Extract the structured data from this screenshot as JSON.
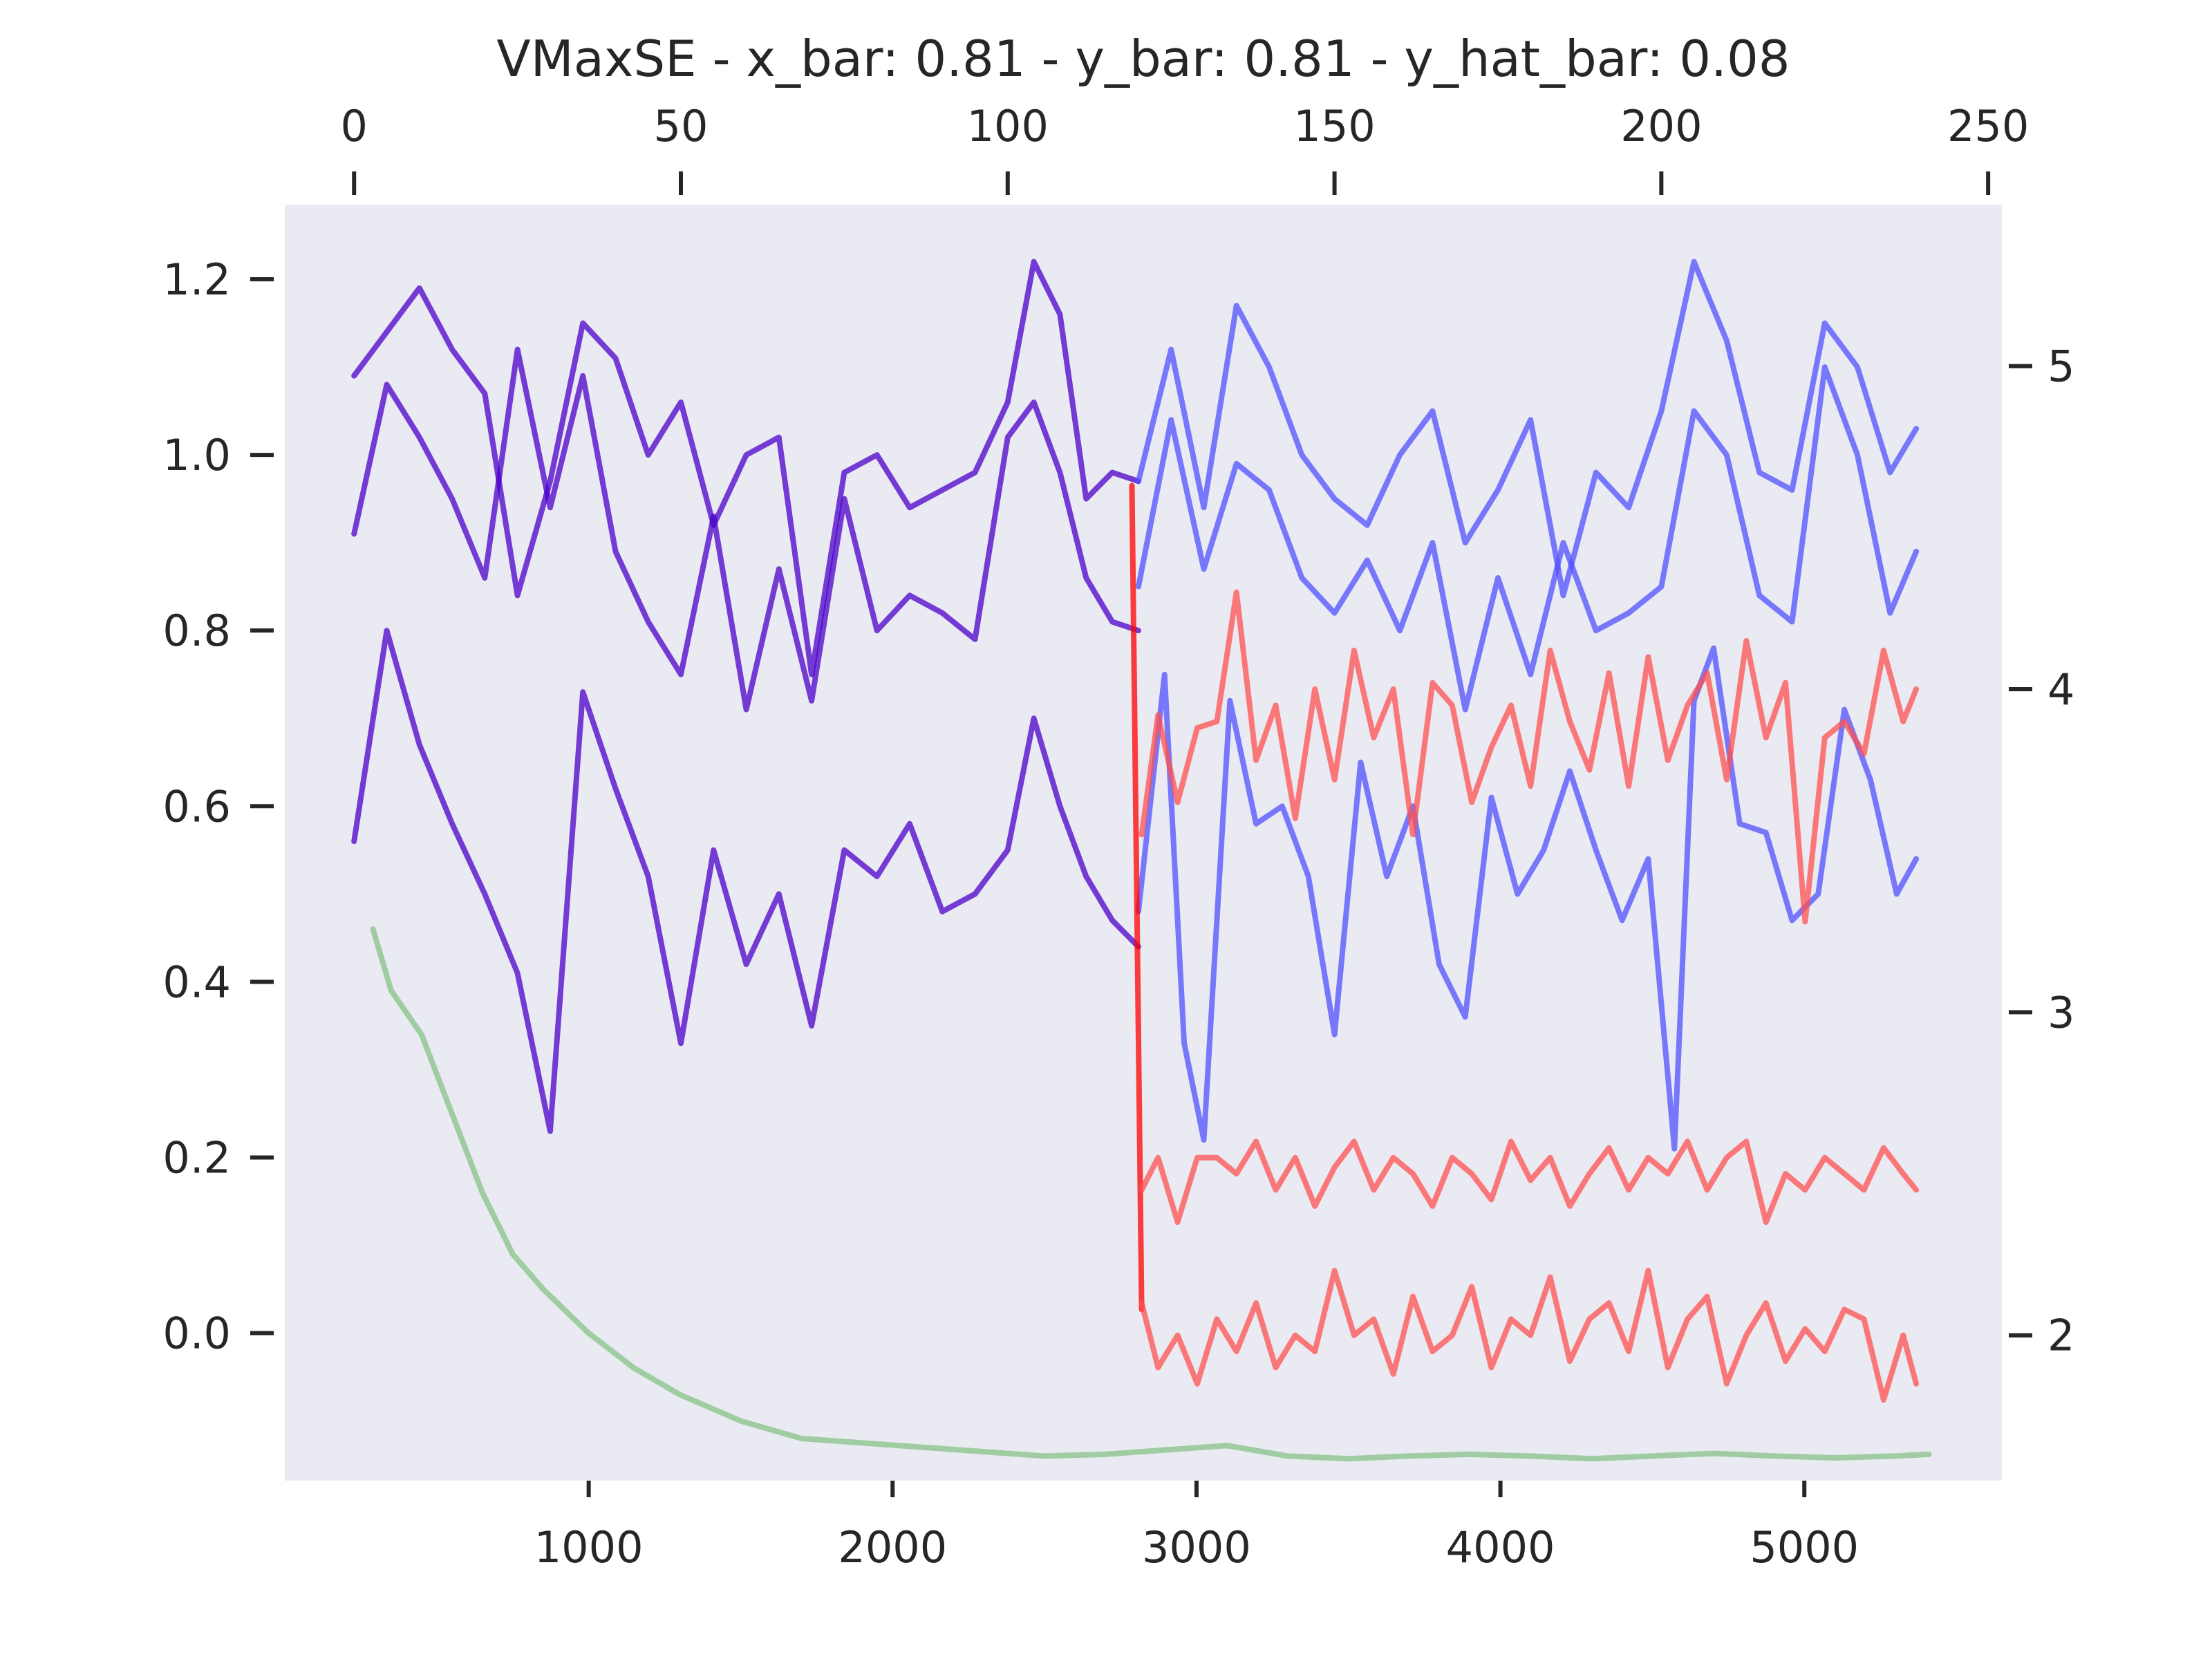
{
  "chart_data": {
    "type": "line",
    "title": "VMaxSE - x_bar: 0.81 - y_bar: 0.81 - y_hat_bar: 0.08",
    "grid": false,
    "background": "#eaeaf2",
    "axes": {
      "x_bottom": {
        "range": [
          0,
          5650
        ],
        "ticks": [
          1000,
          2000,
          3000,
          4000,
          5000
        ]
      },
      "y_left": {
        "range": [
          -0.168,
          1.285
        ],
        "ticks": [
          0.0,
          0.2,
          0.4,
          0.6,
          0.8,
          1.0,
          1.2
        ],
        "tick_labels": [
          "0.0",
          "0.2",
          "0.4",
          "0.6",
          "0.8",
          "1.0",
          "1.2"
        ]
      },
      "x_top": {
        "range": [
          -10.6,
          252.1
        ],
        "ticks": [
          0,
          50,
          100,
          150,
          200,
          250
        ]
      },
      "y_right": {
        "range": [
          1.55,
          5.5
        ],
        "ticks": [
          2,
          3,
          4,
          5
        ]
      }
    },
    "series": [
      {
        "color": "#4b00c8",
        "opacity": 0.75,
        "axes": "top-left",
        "x": [
          0,
          5,
          10,
          15,
          20,
          25,
          30,
          35,
          40,
          45,
          50,
          55,
          60,
          65,
          70,
          75,
          80,
          85,
          90,
          95,
          100,
          104,
          108,
          112,
          116,
          120
        ],
        "y": [
          1.09,
          1.14,
          1.19,
          1.12,
          1.07,
          0.84,
          0.97,
          1.15,
          1.11,
          1.0,
          1.06,
          0.92,
          1.0,
          1.02,
          0.75,
          0.98,
          1.0,
          0.94,
          0.96,
          0.98,
          1.06,
          1.22,
          1.16,
          0.95,
          0.98,
          0.97
        ]
      },
      {
        "color": "#4b00c8",
        "opacity": 0.75,
        "axes": "top-left",
        "x": [
          0,
          5,
          10,
          15,
          20,
          25,
          30,
          35,
          40,
          45,
          50,
          55,
          60,
          65,
          70,
          75,
          80,
          85,
          90,
          95,
          100,
          104,
          108,
          112,
          116,
          120
        ],
        "y": [
          0.91,
          1.08,
          1.02,
          0.95,
          0.86,
          1.12,
          0.94,
          1.09,
          0.89,
          0.81,
          0.75,
          0.93,
          0.71,
          0.87,
          0.72,
          0.95,
          0.8,
          0.84,
          0.82,
          0.79,
          1.02,
          1.06,
          0.98,
          0.86,
          0.81,
          0.8
        ]
      },
      {
        "color": "#4b00c8",
        "opacity": 0.75,
        "axes": "top-left",
        "x": [
          0,
          5,
          10,
          15,
          20,
          25,
          30,
          35,
          40,
          45,
          50,
          55,
          60,
          65,
          70,
          75,
          80,
          85,
          90,
          95,
          100,
          104,
          108,
          112,
          116,
          120
        ],
        "y": [
          0.56,
          0.8,
          0.67,
          0.58,
          0.5,
          0.41,
          0.23,
          0.73,
          0.62,
          0.52,
          0.33,
          0.55,
          0.42,
          0.5,
          0.35,
          0.55,
          0.52,
          0.58,
          0.48,
          0.5,
          0.55,
          0.7,
          0.6,
          0.52,
          0.47,
          0.44
        ]
      },
      {
        "color": "#5050ff",
        "opacity": 0.75,
        "axes": "top-left",
        "x": [
          120,
          125,
          130,
          135,
          140,
          145,
          150,
          155,
          160,
          165,
          170,
          175,
          180,
          185,
          190,
          195,
          200,
          205,
          210,
          215,
          220,
          225,
          230,
          235,
          239
        ],
        "y": [
          0.97,
          1.12,
          0.94,
          1.17,
          1.1,
          1.0,
          0.95,
          0.92,
          1.0,
          1.05,
          0.9,
          0.96,
          1.04,
          0.84,
          0.98,
          0.94,
          1.05,
          1.22,
          1.13,
          0.98,
          0.96,
          1.15,
          1.1,
          0.98,
          1.03
        ]
      },
      {
        "color": "#5050ff",
        "opacity": 0.75,
        "axes": "top-left",
        "x": [
          120,
          125,
          130,
          135,
          140,
          145,
          150,
          155,
          160,
          165,
          170,
          175,
          180,
          185,
          190,
          195,
          200,
          205,
          210,
          215,
          220,
          225,
          230,
          235,
          239
        ],
        "y": [
          0.85,
          1.04,
          0.87,
          0.99,
          0.96,
          0.86,
          0.82,
          0.88,
          0.8,
          0.9,
          0.71,
          0.86,
          0.75,
          0.9,
          0.8,
          0.82,
          0.85,
          1.05,
          1.0,
          0.84,
          0.81,
          1.1,
          1.0,
          0.82,
          0.89
        ]
      },
      {
        "color": "#5050ff",
        "opacity": 0.75,
        "axes": "top-left",
        "x": [
          120,
          124,
          127,
          130,
          134,
          138,
          142,
          146,
          150,
          154,
          158,
          162,
          166,
          170,
          174,
          178,
          182,
          186,
          190,
          194,
          198,
          202,
          205,
          208,
          212,
          216,
          220,
          224,
          228,
          232,
          236,
          239
        ],
        "y": [
          0.48,
          0.75,
          0.33,
          0.22,
          0.72,
          0.58,
          0.6,
          0.52,
          0.34,
          0.65,
          0.52,
          0.6,
          0.42,
          0.36,
          0.61,
          0.5,
          0.55,
          0.64,
          0.55,
          0.47,
          0.54,
          0.21,
          0.72,
          0.78,
          0.58,
          0.57,
          0.47,
          0.5,
          0.71,
          0.63,
          0.5,
          0.54
        ]
      },
      {
        "color": "#ff0000",
        "opacity": 0.75,
        "axes": "top-right",
        "x": [
          119,
          120.5
        ],
        "y": [
          4.63,
          2.08
        ]
      },
      {
        "color": "#ff5050",
        "opacity": 0.75,
        "axes": "top-right",
        "x": [
          120.5,
          123,
          126,
          129,
          132,
          135,
          138,
          141,
          144,
          147,
          150,
          153,
          156,
          159,
          162,
          165,
          168,
          171,
          174,
          177,
          180,
          183,
          186,
          189,
          192,
          195,
          198,
          201,
          204,
          207,
          210,
          213,
          216,
          219,
          222,
          225,
          228,
          231,
          234,
          237,
          239
        ],
        "y": [
          3.55,
          3.92,
          3.65,
          3.88,
          3.9,
          4.3,
          3.78,
          3.95,
          3.6,
          4.0,
          3.72,
          4.12,
          3.85,
          4.0,
          3.55,
          4.02,
          3.95,
          3.65,
          3.82,
          3.95,
          3.7,
          4.12,
          3.9,
          3.75,
          4.05,
          3.7,
          4.1,
          3.78,
          3.95,
          4.05,
          3.72,
          4.15,
          3.85,
          4.02,
          3.28,
          3.85,
          3.9,
          3.8,
          4.12,
          3.9,
          4.0
        ]
      },
      {
        "color": "#ff5050",
        "opacity": 0.75,
        "axes": "top-right",
        "x": [
          120.5,
          123,
          126,
          129,
          132,
          135,
          138,
          141,
          144,
          147,
          150,
          153,
          156,
          159,
          162,
          165,
          168,
          171,
          174,
          177,
          180,
          183,
          186,
          189,
          192,
          195,
          198,
          201,
          204,
          207,
          210,
          213,
          216,
          219,
          222,
          225,
          228,
          231,
          234,
          237,
          239
        ],
        "y": [
          2.45,
          2.55,
          2.35,
          2.55,
          2.55,
          2.5,
          2.6,
          2.45,
          2.55,
          2.4,
          2.52,
          2.6,
          2.45,
          2.55,
          2.5,
          2.4,
          2.55,
          2.5,
          2.42,
          2.6,
          2.48,
          2.55,
          2.4,
          2.5,
          2.58,
          2.45,
          2.55,
          2.5,
          2.6,
          2.45,
          2.55,
          2.6,
          2.35,
          2.5,
          2.45,
          2.55,
          2.5,
          2.45,
          2.58,
          2.5,
          2.45
        ]
      },
      {
        "color": "#ff5050",
        "opacity": 0.75,
        "axes": "top-right",
        "x": [
          120.5,
          123,
          126,
          129,
          132,
          135,
          138,
          141,
          144,
          147,
          150,
          153,
          156,
          159,
          162,
          165,
          168,
          171,
          174,
          177,
          180,
          183,
          186,
          189,
          192,
          195,
          198,
          201,
          204,
          207,
          210,
          213,
          216,
          219,
          222,
          225,
          228,
          231,
          234,
          237,
          239
        ],
        "y": [
          2.1,
          1.9,
          2.0,
          1.85,
          2.05,
          1.95,
          2.1,
          1.9,
          2.0,
          1.95,
          2.2,
          2.0,
          2.05,
          1.88,
          2.12,
          1.95,
          2.0,
          2.15,
          1.9,
          2.05,
          2.0,
          2.18,
          1.92,
          2.05,
          2.1,
          1.95,
          2.2,
          1.9,
          2.05,
          2.12,
          1.85,
          2.0,
          2.1,
          1.92,
          2.02,
          1.95,
          2.08,
          2.05,
          1.8,
          2.0,
          1.85
        ]
      },
      {
        "color": "#7fbf7f",
        "opacity": 0.7,
        "axes": "bottom-left",
        "x": [
          290,
          350,
          450,
          550,
          650,
          750,
          850,
          1000,
          1150,
          1300,
          1500,
          1700,
          1900,
          2100,
          2300,
          2500,
          2700,
          2900,
          3100,
          3300,
          3500,
          3700,
          3900,
          4100,
          4300,
          4500,
          4700,
          4900,
          5100,
          5300,
          5410
        ],
        "y": [
          0.46,
          0.39,
          0.34,
          0.25,
          0.16,
          0.09,
          0.05,
          0.0,
          -0.04,
          -0.07,
          -0.1,
          -0.12,
          -0.125,
          -0.13,
          -0.135,
          -0.14,
          -0.138,
          -0.133,
          -0.128,
          -0.14,
          -0.143,
          -0.14,
          -0.138,
          -0.14,
          -0.143,
          -0.14,
          -0.137,
          -0.14,
          -0.142,
          -0.14,
          -0.138
        ]
      }
    ]
  }
}
